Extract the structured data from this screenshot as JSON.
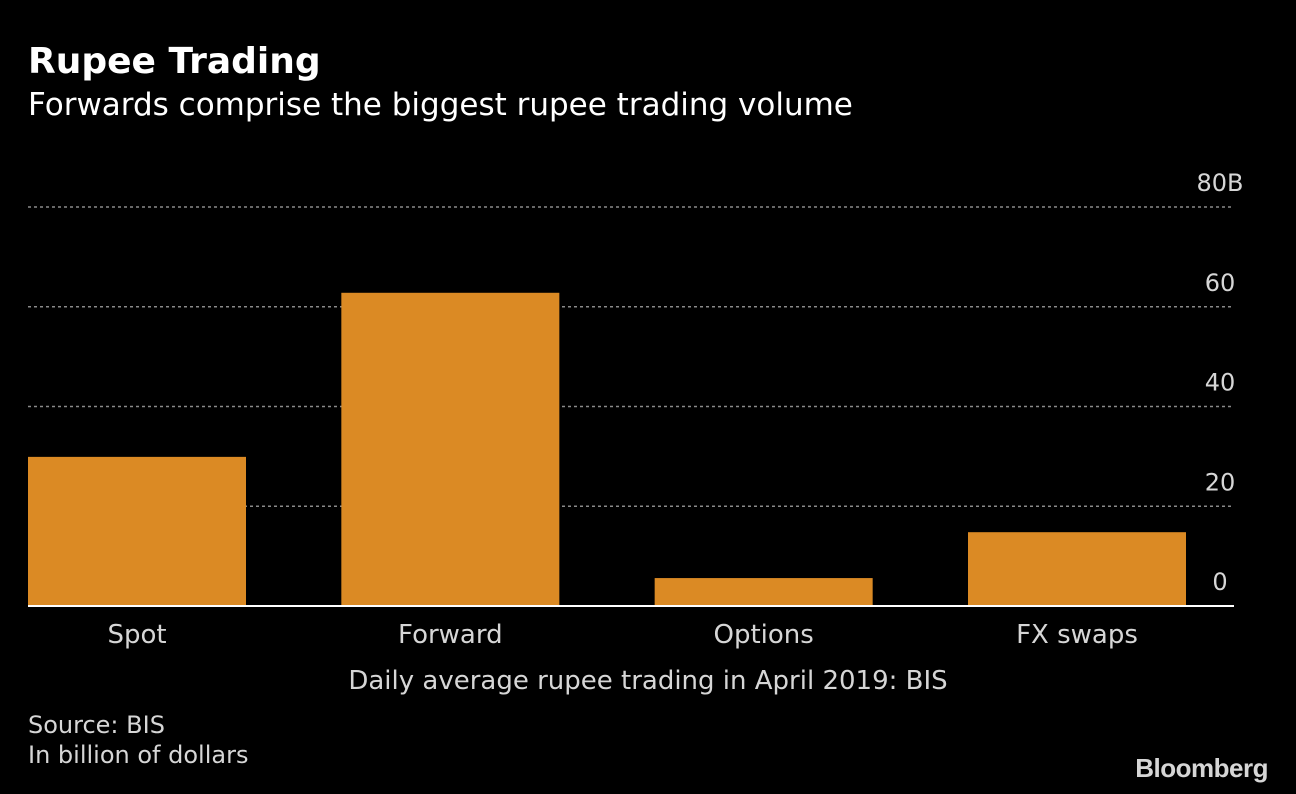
{
  "colors": {
    "background": "#000000",
    "bar": "#db8a24",
    "text": "#ffffff",
    "muted_text": "#d6d6d6",
    "grid": "#8a8a8a"
  },
  "chart_data": {
    "type": "bar",
    "title": "Rupee Trading",
    "subtitle": "Forwards comprise the biggest rupee trading volume",
    "categories": [
      "Spot",
      "Forward",
      "Options",
      "FX swaps"
    ],
    "values": [
      29.9,
      62.8,
      5.6,
      14.8
    ],
    "xlabel": "Daily average rupee trading in April 2019: BIS",
    "ylabel": "",
    "ylim": [
      0,
      80
    ],
    "y_ticks": [
      0,
      20,
      40,
      60,
      80
    ],
    "y_tick_labels": [
      "0",
      "20",
      "40",
      "60",
      "80B"
    ],
    "y_axis_side": "right",
    "grid": true
  },
  "footer": {
    "source": "Source: BIS",
    "note": "In billion of dollars",
    "brand": "Bloomberg"
  }
}
